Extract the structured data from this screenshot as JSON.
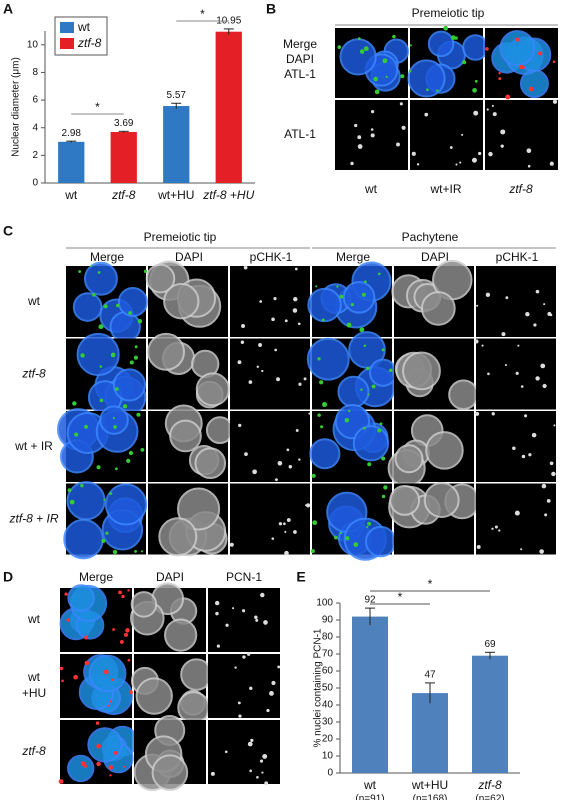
{
  "figure": {
    "panel_labels": [
      "A",
      "B",
      "C",
      "D",
      "E"
    ],
    "panel_b": {
      "title": "Premeiotic tip",
      "row_labels": [
        "Merge",
        "DAPI",
        "ATL-1",
        "ATL-1"
      ],
      "column_labels": [
        "wt",
        "wt+IR",
        "ztf-8"
      ]
    },
    "panel_c": {
      "groups": [
        "Premeiotic tip",
        "Pachytene"
      ],
      "channels": [
        "Merge",
        "DAPI",
        "pCHK-1",
        "Merge",
        "DAPI",
        "pCHK-1"
      ],
      "row_labels": [
        "wt",
        "ztf-8",
        "wt + IR",
        "ztf-8 + IR"
      ]
    },
    "panel_d": {
      "channels": [
        "Merge",
        "DAPI",
        "PCN-1"
      ],
      "row_labels": [
        [
          "wt"
        ],
        [
          "wt",
          "+HU"
        ],
        [
          "ztf-8"
        ]
      ]
    }
  },
  "chart_data": [
    {
      "type": "bar",
      "y_label": "Nuclear diameter (μm)",
      "categories": [
        "wt",
        "ztf-8",
        "wt+HU",
        "ztf-8 +HU"
      ],
      "series": [
        {
          "name": "wt",
          "color": "#2f78c4",
          "values": [
            2.98,
            null,
            5.57,
            null
          ],
          "errors": [
            0.05,
            null,
            0.2,
            null
          ]
        },
        {
          "name": "ztf-8",
          "color": "#e41f26",
          "values": [
            null,
            3.69,
            null,
            10.95
          ],
          "errors": [
            null,
            0.05,
            null,
            0.2
          ]
        }
      ],
      "ylim": [
        0,
        11
      ],
      "yticks": [
        0,
        2,
        4,
        6,
        8,
        10
      ],
      "legend": "upper left",
      "annotations": [
        "*",
        "*"
      ]
    },
    {
      "type": "bar",
      "y_label": "% nuclei containing PCN-1",
      "categories": [
        "wt",
        "wt+HU",
        "ztf-8"
      ],
      "category_notes": [
        "(n=91)",
        "(n=168)",
        "(n=62)"
      ],
      "values": [
        92,
        47,
        69
      ],
      "errors": [
        5,
        6,
        2
      ],
      "color": "#4f81bd",
      "ylim": [
        0,
        100
      ],
      "yticks": [
        0,
        10,
        20,
        30,
        40,
        50,
        60,
        70,
        80,
        90,
        100
      ],
      "annotations": [
        "*",
        "*"
      ]
    }
  ]
}
